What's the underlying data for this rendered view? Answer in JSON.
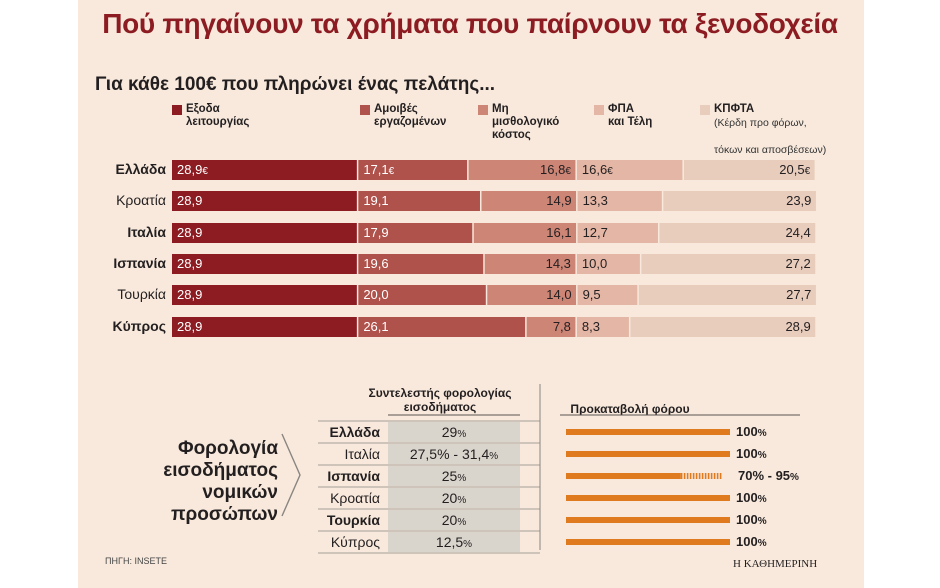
{
  "header": {
    "title": "Πού πηγαίνουν τα χρήματα που παίρνουν τα ξενοδοχεία",
    "subtitle": "Για κάθε 100€ που πληρώνει ένας πελάτης..."
  },
  "legend": [
    {
      "label_1": "Εξοδα",
      "label_2": "λειτουργίας",
      "note": "",
      "color": "#8c1c22"
    },
    {
      "label_1": "Αμοιβές",
      "label_2": "εργαζομένων",
      "note": "",
      "color": "#b0524c"
    },
    {
      "label_1": "Μη",
      "label_2": "μισθολογικό",
      "label_3": "κόστος",
      "note": "",
      "color": "#cd8576"
    },
    {
      "label_1": "ΦΠΑ",
      "label_2": "και Τέλη",
      "note": "",
      "color": "#e3b6a5"
    },
    {
      "label_1": "ΚΠΦΤΑ",
      "label_2": "(Κέρδη προ φόρων,",
      "label_3": "τόκων και αποσβέσεων)",
      "color": "#e8cdbd"
    }
  ],
  "chart_data": [
    {
      "type": "bar",
      "title": "Πού πηγαίνουν τα χρήματα που παίρνουν τα ξενοδοχεία",
      "subtitle": "Για κάθε 100€ που πληρώνει ένας πελάτης...",
      "stacked": true,
      "orientation": "horizontal",
      "categories": [
        "Ελλάδα",
        "Κροατία",
        "Ιταλία",
        "Ισπανία",
        "Τουρκία",
        "Κύπρος"
      ],
      "series": [
        {
          "name": "Εξοδα λειτουργίας",
          "values": [
            28.9,
            28.9,
            28.9,
            28.9,
            28.9,
            28.9
          ],
          "labels": [
            "28,9€",
            "28,9",
            "28,9",
            "28,9",
            "28,9",
            "28,9"
          ]
        },
        {
          "name": "Αμοιβές εργαζομένων",
          "values": [
            17.1,
            19.1,
            17.9,
            19.6,
            20.0,
            26.1
          ],
          "labels": [
            "17,1€",
            "19,1",
            "17,9",
            "19,6",
            "20,0",
            "26,1"
          ]
        },
        {
          "name": "Μη μισθολογικό κόστος",
          "values": [
            16.8,
            14.9,
            16.1,
            14.3,
            14.0,
            7.8
          ],
          "labels": [
            "16,8€",
            "14,9",
            "16,1",
            "14,3",
            "14,0",
            "7,8"
          ]
        },
        {
          "name": "ΦΠΑ και Τέλη",
          "values": [
            16.6,
            13.3,
            12.7,
            10.0,
            9.5,
            8.3
          ],
          "labels": [
            "16,6€",
            "13,3",
            "12,7",
            "10,0",
            "9,5",
            "8,3"
          ]
        },
        {
          "name": "ΚΠΦΤΑ (Κέρδη προ φόρων, τόκων και αποσβέσεων)",
          "values": [
            20.5,
            23.9,
            24.4,
            27.2,
            27.7,
            28.9
          ],
          "labels": [
            "20,5€",
            "23,9",
            "24,4",
            "27,2",
            "27,7",
            "28,9"
          ]
        }
      ],
      "bold_categories": [
        "Ελλάδα",
        "Ιταλία",
        "Ισπανία",
        "Κύπρος"
      ],
      "xlim": [
        0,
        100.5
      ]
    },
    {
      "type": "table",
      "title": "Φορολογία εισοδήματος νομικών προσώπων",
      "columns": [
        "Συντελεστής φορολογίας εισοδήματος",
        "Προκαταβολή φόρου"
      ],
      "rows": [
        {
          "country": "Ελλάδα",
          "rate": "29",
          "prepay": "100",
          "prepay_min": 100,
          "prepay_max": 100,
          "bold": true
        },
        {
          "country": "Ιταλία",
          "rate": "27,5% - 31,4",
          "prepay": "100",
          "prepay_min": 100,
          "prepay_max": 100,
          "bold": false
        },
        {
          "country": "Ισπανία",
          "rate": "25",
          "prepay": "70% - 95",
          "prepay_min": 70,
          "prepay_max": 95,
          "bold": true
        },
        {
          "country": "Κροατία",
          "rate": "20",
          "prepay": "100",
          "prepay_min": 100,
          "prepay_max": 100,
          "bold": false
        },
        {
          "country": "Τουρκία",
          "rate": "20",
          "prepay": "100",
          "prepay_min": 100,
          "prepay_max": 100,
          "bold": true
        },
        {
          "country": "Κύπρος",
          "rate": "12,5",
          "prepay": "100",
          "prepay_min": 100,
          "prepay_max": 100,
          "bold": false
        }
      ]
    }
  ],
  "tax": {
    "side_title_1": "Φορολογία",
    "side_title_2": "εισοδήματος",
    "side_title_3": "νομικών",
    "side_title_4": "προσώπων",
    "col1_line1": "Συντελεστής φορολογίας",
    "col1_line2": "εισοδήματος",
    "col2": "Προκαταβολή φόρου",
    "bar_color": "#e07a1f",
    "rate_box_color": "#d9d4cc"
  },
  "footer": {
    "source": "ΠΗΓΗ: INSETE",
    "brand": "Η ΚΑΘΗΜΕΡΙΝΗ"
  }
}
